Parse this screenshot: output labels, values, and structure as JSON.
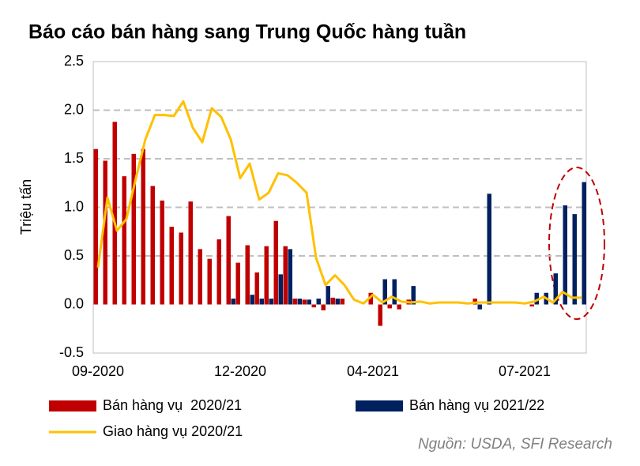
{
  "chart_data": {
    "type": "bar_line",
    "title": "Báo cáo bán hàng sang Trung Quốc hàng tuần",
    "y_label": "Triệu tấn",
    "source": "Nguồn: USDA, SFI Research",
    "categories": [
      "09-2020",
      null,
      null,
      null,
      null,
      null,
      null,
      null,
      null,
      null,
      null,
      null,
      null,
      null,
      null,
      "12-2020",
      null,
      null,
      null,
      null,
      null,
      null,
      null,
      null,
      null,
      null,
      null,
      null,
      null,
      "04-2021",
      null,
      null,
      null,
      null,
      null,
      null,
      null,
      null,
      null,
      null,
      null,
      null,
      null,
      null,
      null,
      "07-2021",
      null,
      null,
      null,
      null,
      null,
      null
    ],
    "ylim": [
      -0.5,
      2.5
    ],
    "yticks": [
      -0.5,
      {
        "value": 0,
        "label": "0.0"
      },
      0.5,
      {
        "value": 1,
        "label": "1.0"
      },
      1.5,
      {
        "value": 2,
        "label": "2.0"
      },
      2.5
    ],
    "grid": true,
    "series": [
      {
        "name": "Bán hàng vụ  2020/21",
        "type": "bar",
        "color": "#c00000",
        "values": [
          1.6,
          1.48,
          1.88,
          1.32,
          1.55,
          1.6,
          1.22,
          1.07,
          0.8,
          0.74,
          1.06,
          0.57,
          0.47,
          0.67,
          0.91,
          0.43,
          0.61,
          0.33,
          0.6,
          0.86,
          0.6,
          0.06,
          0.05,
          -0.03,
          -0.06,
          0.07,
          0.06,
          null,
          null,
          0.12,
          -0.22,
          -0.04,
          -0.05,
          0.05,
          null,
          null,
          null,
          null,
          null,
          null,
          0.06,
          null,
          null,
          null,
          null,
          null,
          -0.02,
          null,
          null,
          null,
          null,
          null
        ]
      },
      {
        "name": "Bán hàng vụ 2021/22",
        "type": "bar",
        "color": "#002060",
        "values": [
          null,
          null,
          null,
          null,
          null,
          null,
          null,
          null,
          null,
          null,
          null,
          null,
          null,
          null,
          0.06,
          null,
          0.1,
          0.06,
          0.06,
          0.31,
          0.57,
          0.06,
          0.05,
          0.06,
          0.19,
          0.06,
          null,
          null,
          null,
          null,
          0.26,
          0.26,
          null,
          0.19,
          null,
          null,
          null,
          null,
          null,
          null,
          -0.05,
          1.14,
          null,
          null,
          null,
          null,
          0.12,
          0.12,
          0.32,
          1.02,
          0.93,
          1.26
        ]
      },
      {
        "name": "Giao hàng vụ 2020/21",
        "type": "line",
        "color": "#ffc000",
        "values": [
          0.38,
          1.1,
          0.76,
          0.88,
          1.3,
          1.7,
          1.95,
          1.95,
          1.94,
          2.09,
          1.82,
          1.67,
          2.02,
          1.93,
          1.7,
          1.3,
          1.45,
          1.08,
          1.15,
          1.35,
          1.33,
          1.25,
          1.15,
          0.48,
          0.2,
          0.3,
          0.2,
          0.05,
          0.01,
          0.1,
          0.02,
          0.08,
          0.03,
          0.02,
          0.03,
          0.01,
          0.02,
          0.02,
          0.02,
          0.01,
          0.02,
          0.02,
          0.02,
          0.02,
          0.02,
          0.01,
          0.03,
          0.08,
          0.02,
          0.13,
          0.07,
          0.07
        ]
      }
    ]
  }
}
